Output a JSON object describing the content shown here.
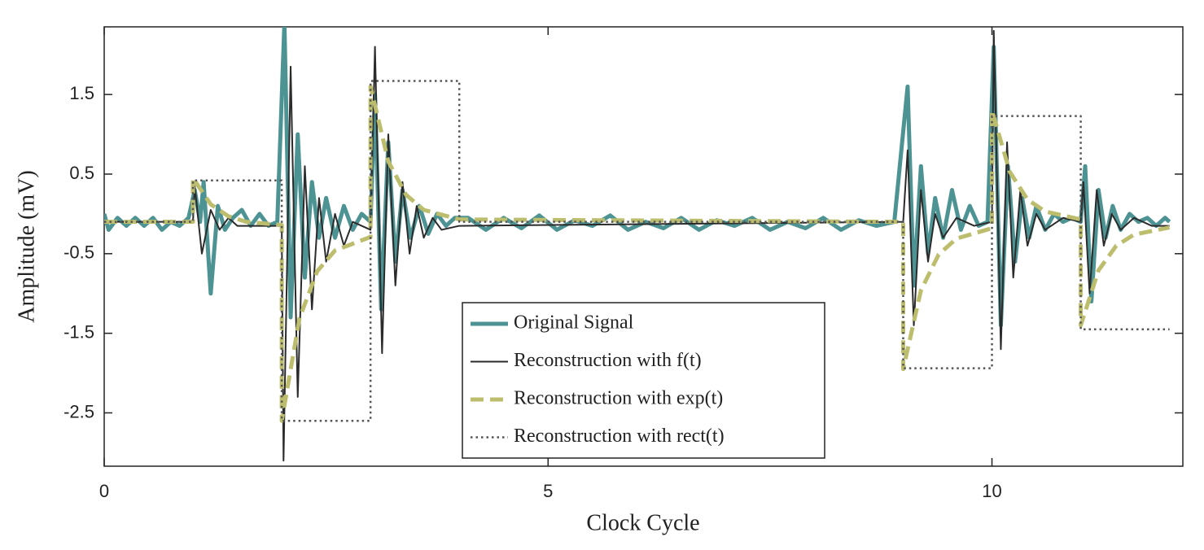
{
  "chart_data": {
    "type": "line",
    "xlabel": "Clock Cycle",
    "ylabel": "Amplitude (mV)",
    "xlim": [
      0,
      12.15
    ],
    "ylim": [
      -3.17,
      2.35
    ],
    "xticks": [
      0,
      5,
      10
    ],
    "yticks": [
      -2.5,
      -1.5,
      -0.5,
      0.5,
      1.5
    ],
    "grid": false,
    "legend": "lower center",
    "series": [
      {
        "name": "Original Signal",
        "color": "#4d9393",
        "linestyle": "solid-thick",
        "x": [
          0,
          0.05,
          0.15,
          0.25,
          0.35,
          0.45,
          0.55,
          0.65,
          0.75,
          0.85,
          0.95,
          1.02,
          1.08,
          1.12,
          1.2,
          1.28,
          1.36,
          1.45,
          1.55,
          1.65,
          1.75,
          1.85,
          1.95,
          2.03,
          2.1,
          2.18,
          2.26,
          2.34,
          2.42,
          2.5,
          2.6,
          2.7,
          2.8,
          2.9,
          3.0,
          3.05,
          3.12,
          3.2,
          3.28,
          3.36,
          3.45,
          3.55,
          3.65,
          3.75,
          3.85,
          3.95,
          4.1,
          4.3,
          4.5,
          4.7,
          4.9,
          5.1,
          5.3,
          5.5,
          5.7,
          5.9,
          6.1,
          6.3,
          6.5,
          6.7,
          6.9,
          7.1,
          7.3,
          7.5,
          7.7,
          7.9,
          8.1,
          8.3,
          8.5,
          8.7,
          8.9,
          9.05,
          9.12,
          9.2,
          9.28,
          9.36,
          9.45,
          9.55,
          9.65,
          9.75,
          9.85,
          9.95,
          10.02,
          10.1,
          10.18,
          10.26,
          10.34,
          10.42,
          10.5,
          10.6,
          10.7,
          10.8,
          10.9,
          11.0,
          11.05,
          11.12,
          11.2,
          11.28,
          11.36,
          11.45,
          11.55,
          11.65,
          11.75,
          11.85,
          11.95,
          12.0
        ],
        "values": [
          0.0,
          -0.2,
          -0.05,
          -0.15,
          -0.05,
          -0.15,
          -0.05,
          -0.2,
          -0.1,
          -0.15,
          -0.05,
          0.3,
          -0.1,
          0.4,
          -1.0,
          0.1,
          -0.2,
          -0.05,
          0.05,
          -0.15,
          0.0,
          -0.15,
          -0.1,
          2.4,
          -1.3,
          1.0,
          -0.8,
          0.4,
          -0.3,
          0.2,
          -0.3,
          0.1,
          -0.2,
          0.0,
          -0.1,
          1.5,
          -1.2,
          0.9,
          -0.6,
          0.3,
          -0.3,
          0.1,
          -0.25,
          0.0,
          -0.15,
          -0.05,
          -0.05,
          -0.2,
          -0.05,
          -0.18,
          -0.02,
          -0.2,
          -0.08,
          -0.15,
          -0.02,
          -0.2,
          -0.1,
          -0.18,
          -0.05,
          -0.2,
          -0.08,
          -0.15,
          -0.05,
          -0.2,
          -0.1,
          -0.18,
          -0.05,
          -0.2,
          -0.08,
          -0.15,
          -0.1,
          1.6,
          -0.9,
          0.6,
          -0.5,
          0.2,
          -0.3,
          0.3,
          -0.2,
          0.1,
          -0.15,
          -0.1,
          2.1,
          -1.4,
          0.6,
          -0.6,
          0.2,
          -0.3,
          0.1,
          -0.2,
          0.0,
          -0.1,
          -0.05,
          -0.1,
          0.6,
          -1.1,
          0.3,
          -0.3,
          0.1,
          -0.2,
          0.0,
          -0.1,
          -0.05,
          -0.15,
          -0.05,
          -0.1
        ]
      },
      {
        "name": "Reconstruction with f(t)",
        "color": "#2b2b2b",
        "linestyle": "solid",
        "x": [
          0,
          1,
          1.02,
          1.1,
          1.2,
          1.3,
          1.4,
          1.5,
          2.0,
          2.02,
          2.1,
          2.18,
          2.26,
          2.34,
          2.42,
          2.5,
          2.6,
          2.7,
          2.8,
          3.0,
          3.05,
          3.13,
          3.2,
          3.28,
          3.36,
          3.44,
          3.52,
          3.6,
          3.7,
          3.8,
          4.0,
          9.0,
          9.05,
          9.12,
          9.2,
          9.28,
          9.36,
          9.45,
          9.6,
          9.8,
          10.0,
          10.02,
          10.1,
          10.17,
          10.24,
          10.32,
          10.4,
          10.5,
          10.6,
          10.8,
          11.0,
          11.03,
          11.1,
          11.18,
          11.26,
          11.35,
          11.45,
          11.6,
          11.8,
          12.0
        ],
        "values": [
          -0.1,
          -0.1,
          0.35,
          -0.5,
          0.05,
          -0.2,
          -0.05,
          -0.15,
          -0.15,
          -3.1,
          1.85,
          -2.3,
          0.6,
          -1.2,
          0.2,
          -0.6,
          0.0,
          -0.4,
          -0.1,
          -0.2,
          2.1,
          -1.75,
          1.0,
          -0.9,
          0.4,
          -0.5,
          0.1,
          -0.3,
          -0.05,
          -0.2,
          -0.15,
          -0.1,
          0.8,
          -1.4,
          0.3,
          -0.6,
          0.0,
          -0.3,
          -0.05,
          -0.15,
          -0.1,
          2.3,
          -1.7,
          0.9,
          -0.8,
          0.3,
          -0.4,
          0.0,
          -0.2,
          -0.05,
          -0.1,
          0.4,
          -1.0,
          0.3,
          -0.4,
          0.0,
          -0.2,
          -0.05,
          -0.15,
          -0.15
        ]
      },
      {
        "name": "Reconstruction with exp(t)",
        "color": "#bdbd6e",
        "linestyle": "dashed",
        "x": [
          0,
          1,
          1,
          1.2,
          1.4,
          1.6,
          2,
          2,
          2.2,
          2.4,
          2.6,
          3,
          3,
          3.2,
          3.4,
          3.6,
          4,
          9,
          9,
          9.2,
          9.4,
          9.6,
          10,
          10,
          10.2,
          10.4,
          10.6,
          11,
          11,
          11.2,
          11.4,
          11.6,
          12
        ],
        "values": [
          -0.1,
          -0.1,
          0.45,
          0.12,
          -0.03,
          -0.1,
          -0.14,
          -2.6,
          -1.31,
          -0.72,
          -0.46,
          -0.29,
          1.6,
          0.66,
          0.24,
          0.05,
          -0.07,
          -0.1,
          -1.95,
          -0.96,
          -0.51,
          -0.31,
          -0.18,
          1.3,
          0.53,
          0.18,
          0.03,
          -0.07,
          -1.4,
          -0.71,
          -0.4,
          -0.26,
          -0.17
        ]
      },
      {
        "name": "Reconstruction with rect(t)",
        "color": "#555555",
        "linestyle": "dotted",
        "x": [
          0,
          1,
          1,
          2,
          2,
          3,
          3,
          4,
          4,
          9,
          9,
          10,
          10,
          11,
          11,
          12
        ],
        "values": [
          -0.1,
          -0.1,
          0.42,
          0.42,
          -2.6,
          -2.6,
          1.67,
          1.67,
          -0.1,
          -0.1,
          -1.94,
          -1.94,
          1.23,
          1.23,
          -1.45,
          -1.45
        ]
      }
    ]
  }
}
